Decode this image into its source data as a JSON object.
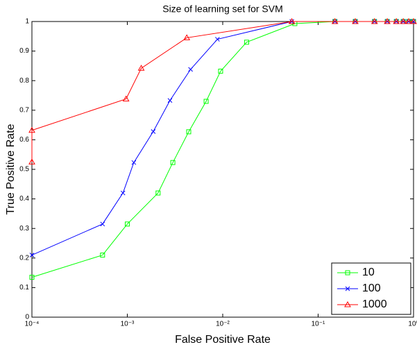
{
  "chart_data": {
    "type": "line",
    "title": "Size of learning set for SVM",
    "xlabel": "False Positive Rate",
    "ylabel": "True Positive Rate",
    "xscale": "log",
    "xlim": [
      0.0001,
      1
    ],
    "ylim": [
      0,
      1
    ],
    "xticks": [
      {
        "value": 0.0001,
        "label": "10⁻⁴"
      },
      {
        "value": 0.001,
        "label": "10⁻³"
      },
      {
        "value": 0.01,
        "label": "10⁻²"
      },
      {
        "value": 0.1,
        "label": "10⁻¹"
      },
      {
        "value": 1,
        "label": "10⁰"
      }
    ],
    "yticks": [
      0,
      0.1,
      0.2,
      0.3,
      0.4,
      0.5,
      0.6,
      0.7,
      0.8,
      0.9,
      1
    ],
    "grid": false,
    "legend": "southeast",
    "series": [
      {
        "name": "10",
        "color": "#00ff00",
        "marker": "square",
        "x": [
          0.0001,
          0.00055,
          0.001,
          0.0021,
          0.003,
          0.0044,
          0.0067,
          0.0095,
          0.0178,
          0.057,
          0.15,
          0.245,
          0.39,
          0.53,
          0.66,
          0.78,
          0.89,
          1
        ],
        "values": [
          0.135,
          0.21,
          0.315,
          0.42,
          0.523,
          0.627,
          0.73,
          0.832,
          0.93,
          0.993,
          1,
          1,
          1,
          1,
          1,
          1,
          1,
          1
        ]
      },
      {
        "name": "100",
        "color": "#0000ff",
        "marker": "x",
        "x": [
          0.0001,
          0.00055,
          0.0009,
          0.00117,
          0.00187,
          0.0028,
          0.0046,
          0.0088,
          0.053,
          0.15,
          0.245,
          0.39,
          0.53,
          0.66,
          0.78,
          0.89,
          1
        ],
        "values": [
          0.21,
          0.315,
          0.42,
          0.523,
          0.628,
          0.733,
          0.838,
          0.94,
          1,
          1,
          1,
          1,
          1,
          1,
          1,
          1,
          1
        ]
      },
      {
        "name": "1000",
        "color": "#ff0000",
        "marker": "triangle",
        "x": [
          0.0001,
          0.0001,
          0.00097,
          0.0014,
          0.0042,
          0.053,
          0.15,
          0.245,
          0.39,
          0.53,
          0.66,
          0.78,
          0.89,
          1
        ],
        "values": [
          0.525,
          0.632,
          0.738,
          0.842,
          0.945,
          1,
          1,
          1,
          1,
          1,
          1,
          1,
          1,
          1
        ]
      }
    ]
  }
}
